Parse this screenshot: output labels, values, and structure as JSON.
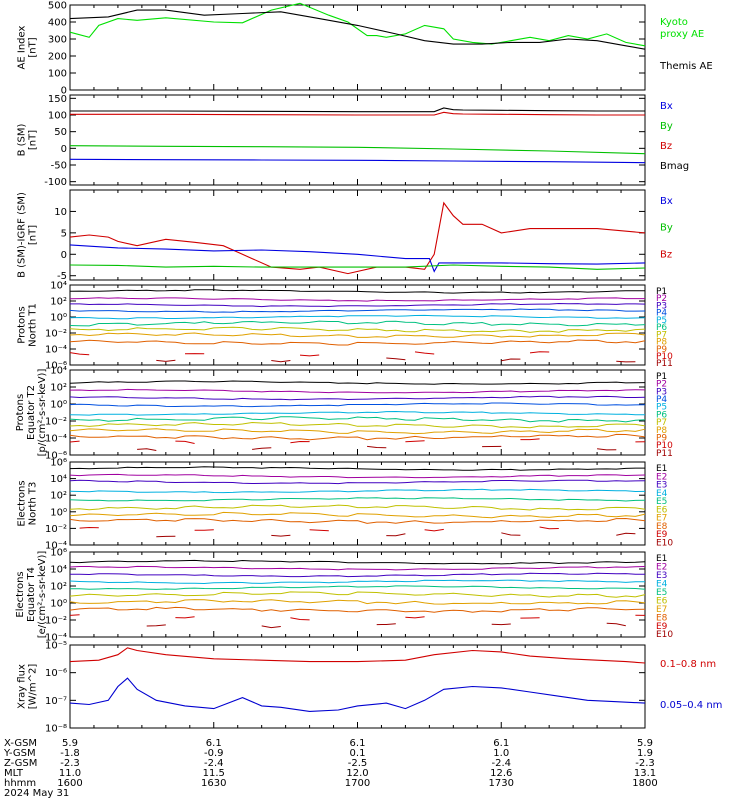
{
  "colors": {
    "black": "#000000",
    "blue": "#0000e0",
    "green": "#00c000",
    "red": "#d00000",
    "kyoto": "#00e000",
    "xray_red": "#d00000",
    "xray_blue": "#0000d0"
  },
  "footer": {
    "labels": [
      "X-GSM",
      "Y-GSM",
      "Z-GSM",
      "MLT",
      "hhmm",
      "2024 May 31"
    ],
    "columns": [
      {
        "x": "5.9",
        "y": "-1.8",
        "z": "-2.3",
        "mlt": "11.0",
        "t": "1600"
      },
      {
        "x": "6.1",
        "y": "-0.9",
        "z": "-2.4",
        "mlt": "11.5",
        "t": "1630"
      },
      {
        "x": "6.1",
        "y": "0.1",
        "z": "-2.5",
        "mlt": "12.0",
        "t": "1700"
      },
      {
        "x": "6.1",
        "y": "1.0",
        "z": "-2.4",
        "mlt": "12.6",
        "t": "1730"
      },
      {
        "x": "5.9",
        "y": "1.9",
        "z": "-2.3",
        "mlt": "13.1",
        "t": "1800"
      }
    ]
  },
  "chart_data": [
    {
      "type": "line",
      "ylabel": [
        "AE Index",
        "[nT]"
      ],
      "ylim": [
        0,
        500
      ],
      "yticks": [
        {
          "v": 0,
          "t": "0"
        },
        {
          "v": 100,
          "t": "100"
        },
        {
          "v": 200,
          "t": "200"
        },
        {
          "v": 300,
          "t": "300"
        },
        {
          "v": 400,
          "t": "400"
        },
        {
          "v": 500,
          "t": "500"
        }
      ],
      "legend": [
        {
          "text": "Kyoto",
          "color": "kyoto"
        },
        {
          "text": "proxy AE",
          "color": "kyoto"
        },
        {
          "text": "Themis AE",
          "color": "black"
        }
      ],
      "series": [
        {
          "name": "Kyoto proxy AE",
          "color": "kyoto",
          "x": [
            0,
            4,
            6,
            10,
            14,
            20,
            30,
            36,
            42,
            48,
            54,
            58,
            62,
            64,
            66,
            70,
            74,
            78,
            80,
            84,
            88,
            92,
            96,
            100,
            104,
            108,
            112,
            116,
            120
          ],
          "y": [
            340,
            310,
            380,
            420,
            410,
            425,
            400,
            395,
            470,
            510,
            440,
            400,
            320,
            320,
            310,
            330,
            380,
            360,
            300,
            280,
            270,
            290,
            310,
            290,
            320,
            300,
            330,
            280,
            260
          ]
        },
        {
          "name": "Themis AE",
          "color": "black",
          "x": [
            0,
            8,
            14,
            20,
            28,
            36,
            44,
            52,
            60,
            68,
            74,
            80,
            86,
            92,
            98,
            104,
            110,
            116,
            120
          ],
          "y": [
            420,
            430,
            470,
            470,
            440,
            450,
            460,
            420,
            380,
            330,
            290,
            270,
            270,
            280,
            280,
            300,
            290,
            260,
            240
          ]
        }
      ]
    },
    {
      "type": "line",
      "ylabel": [
        "B (SM)",
        "[nT]"
      ],
      "ylim": [
        -110,
        160
      ],
      "yticks": [
        {
          "v": -100,
          "t": "-100"
        },
        {
          "v": -50,
          "t": "-50"
        },
        {
          "v": 0,
          "t": "0"
        },
        {
          "v": 50,
          "t": "50"
        },
        {
          "v": 100,
          "t": "100"
        },
        {
          "v": 150,
          "t": "150"
        }
      ],
      "legend": [
        {
          "text": "Bx",
          "color": "blue"
        },
        {
          "text": "By",
          "color": "green"
        },
        {
          "text": "Bz",
          "color": "red"
        },
        {
          "text": "Bmag",
          "color": "black"
        }
      ],
      "series": [
        {
          "name": "Bmag",
          "color": "black",
          "x": [
            0,
            20,
            40,
            60,
            76,
            78,
            80,
            82,
            90,
            100,
            110,
            120
          ],
          "y": [
            112,
            112,
            111,
            110,
            110,
            121,
            116,
            115,
            114,
            113,
            112,
            112
          ]
        },
        {
          "name": "Bz",
          "color": "red",
          "x": [
            0,
            20,
            40,
            60,
            76,
            78,
            80,
            82,
            90,
            100,
            110,
            120
          ],
          "y": [
            102,
            102,
            101,
            100,
            100,
            108,
            104,
            103,
            102,
            101,
            100,
            100
          ]
        },
        {
          "name": "By",
          "color": "green",
          "x": [
            0,
            20,
            40,
            60,
            80,
            100,
            120
          ],
          "y": [
            8,
            6,
            5,
            3,
            -2,
            -8,
            -16
          ]
        },
        {
          "name": "Bx",
          "color": "blue",
          "x": [
            0,
            20,
            40,
            60,
            80,
            100,
            120
          ],
          "y": [
            -33,
            -34,
            -35,
            -36,
            -38,
            -40,
            -43
          ]
        }
      ]
    },
    {
      "type": "line",
      "ylabel": [
        "B (SM)-IGRF (SM)",
        "[nT]"
      ],
      "ylim": [
        -6,
        15
      ],
      "yticks": [
        {
          "v": -5,
          "t": "-5"
        },
        {
          "v": 0,
          "t": "0"
        },
        {
          "v": 5,
          "t": "5"
        },
        {
          "v": 10,
          "t": "10"
        }
      ],
      "legend": [
        {
          "text": "Bx",
          "color": "blue"
        },
        {
          "text": "By",
          "color": "green"
        },
        {
          "text": "Bz",
          "color": "red"
        }
      ],
      "series": [
        {
          "name": "Bz",
          "color": "red",
          "x": [
            0,
            4,
            8,
            10,
            14,
            20,
            26,
            32,
            38,
            42,
            48,
            52,
            58,
            64,
            70,
            74,
            76,
            77,
            78,
            80,
            82,
            86,
            90,
            96,
            104,
            110,
            120
          ],
          "y": [
            4,
            4.5,
            4,
            3,
            2,
            3.5,
            2.8,
            2,
            -1,
            -3,
            -3.5,
            -3,
            -4.5,
            -3,
            -3,
            -3.5,
            0,
            6,
            12,
            9,
            7,
            7,
            5,
            6,
            6,
            6,
            5
          ]
        },
        {
          "name": "Bx",
          "color": "blue",
          "x": [
            0,
            10,
            20,
            30,
            40,
            50,
            60,
            70,
            75,
            76,
            77,
            80,
            90,
            100,
            110,
            120
          ],
          "y": [
            2.2,
            1.5,
            1.2,
            0.8,
            1,
            0.6,
            0,
            -1,
            -1,
            -4,
            -2,
            -2,
            -2,
            -2.2,
            -2.3,
            -2
          ]
        },
        {
          "name": "By",
          "color": "green",
          "x": [
            0,
            10,
            20,
            30,
            40,
            50,
            60,
            70,
            80,
            90,
            100,
            110,
            120
          ],
          "y": [
            -2.5,
            -2.6,
            -3,
            -2.8,
            -3,
            -3,
            -3,
            -3,
            -2.5,
            -2.8,
            -3,
            -3.5,
            -3.2
          ]
        }
      ]
    },
    {
      "type": "line",
      "log": true,
      "ylabel": [
        "Protons",
        "North T1"
      ],
      "ylim": [
        -6,
        4
      ],
      "yticks": [
        {
          "v": -6,
          "t": "10⁻⁶"
        },
        {
          "v": -4,
          "t": "10⁻⁴"
        },
        {
          "v": -2,
          "t": "10⁻²"
        },
        {
          "v": 0,
          "t": "10⁰"
        },
        {
          "v": 2,
          "t": "10²"
        },
        {
          "v": 4,
          "t": "10⁴"
        }
      ],
      "legend": [
        {
          "text": "P1",
          "color": "black"
        },
        {
          "text": "P2",
          "color": "p2"
        },
        {
          "text": "P3",
          "color": "p3"
        },
        {
          "text": "P4",
          "color": "p4"
        },
        {
          "text": "P5",
          "color": "p5"
        },
        {
          "text": "P6",
          "color": "p6"
        },
        {
          "text": "P7",
          "color": "p7"
        },
        {
          "text": "P8",
          "color": "p8"
        },
        {
          "text": "P9",
          "color": "p9"
        },
        {
          "text": "P10",
          "color": "p10"
        },
        {
          "text": "P11",
          "color": "p11"
        }
      ],
      "levels": [
        3.2,
        2.2,
        1.5,
        0.8,
        0,
        -0.8,
        -1.6,
        -2.3,
        -3.2,
        -4.6,
        -5.4
      ],
      "gaps": [
        9,
        10
      ]
    },
    {
      "type": "line",
      "log": true,
      "ylabel": [
        "Protons",
        "Equator T2",
        "[p/(cm²-s-sr-keV)]"
      ],
      "ylim": [
        -6,
        4
      ],
      "yticks": [
        {
          "v": -6,
          "t": "10⁻⁶"
        },
        {
          "v": -4,
          "t": "10⁻⁴"
        },
        {
          "v": -2,
          "t": "10⁻²"
        },
        {
          "v": 0,
          "t": "10⁰"
        },
        {
          "v": 2,
          "t": "10²"
        },
        {
          "v": 4,
          "t": "10⁴"
        }
      ],
      "legend": [
        {
          "text": "P1",
          "color": "black"
        },
        {
          "text": "P2",
          "color": "p2"
        },
        {
          "text": "P3",
          "color": "p3"
        },
        {
          "text": "P4",
          "color": "p4"
        },
        {
          "text": "P5",
          "color": "p5"
        },
        {
          "text": "P6",
          "color": "p6"
        },
        {
          "text": "P7",
          "color": "p7"
        },
        {
          "text": "P8",
          "color": "p8"
        },
        {
          "text": "P9",
          "color": "p9"
        },
        {
          "text": "P10",
          "color": "p10"
        },
        {
          "text": "P11",
          "color": "p11"
        }
      ],
      "levels": [
        2.5,
        1.5,
        0.7,
        -0.1,
        -1.1,
        -1.8,
        -2.5,
        -3.2,
        -3.9,
        -4.4,
        -5.2
      ],
      "gaps": [
        9,
        10
      ]
    },
    {
      "type": "line",
      "log": true,
      "ylabel": [
        "Electrons",
        "North T3"
      ],
      "ylim": [
        -4,
        6
      ],
      "yticks": [
        {
          "v": -4,
          "t": "10⁻⁴"
        },
        {
          "v": -2,
          "t": "10⁻²"
        },
        {
          "v": 0,
          "t": "10⁰"
        },
        {
          "v": 2,
          "t": "10²"
        },
        {
          "v": 4,
          "t": "10⁴"
        },
        {
          "v": 6,
          "t": "10⁶"
        }
      ],
      "legend": [
        {
          "text": "E1",
          "color": "black"
        },
        {
          "text": "E2",
          "color": "p2"
        },
        {
          "text": "E3",
          "color": "p3"
        },
        {
          "text": "E4",
          "color": "p5"
        },
        {
          "text": "E5",
          "color": "p6"
        },
        {
          "text": "E6",
          "color": "p7"
        },
        {
          "text": "E7",
          "color": "p8"
        },
        {
          "text": "E8",
          "color": "p9"
        },
        {
          "text": "E9",
          "color": "p10"
        },
        {
          "text": "E10",
          "color": "p11"
        }
      ],
      "levels": [
        5.2,
        4.3,
        3.6,
        2.5,
        1.5,
        0.5,
        -0.4,
        -1.1,
        -2.1,
        -2.8
      ],
      "gaps": [
        8,
        9
      ]
    },
    {
      "type": "line",
      "log": true,
      "ylabel": [
        "Electrons",
        "Equator T4",
        "[e/(cm²-s-sr-keV)]"
      ],
      "ylim": [
        -4,
        6
      ],
      "yticks": [
        {
          "v": -4,
          "t": "10⁻⁴"
        },
        {
          "v": -2,
          "t": "10⁻²"
        },
        {
          "v": 0,
          "t": "10⁰"
        },
        {
          "v": 2,
          "t": "10²"
        },
        {
          "v": 4,
          "t": "10⁴"
        },
        {
          "v": 6,
          "t": "10⁶"
        }
      ],
      "legend": [
        {
          "text": "E1",
          "color": "black"
        },
        {
          "text": "E2",
          "color": "p2"
        },
        {
          "text": "E3",
          "color": "p3"
        },
        {
          "text": "E4",
          "color": "p5"
        },
        {
          "text": "E5",
          "color": "p6"
        },
        {
          "text": "E6",
          "color": "p7"
        },
        {
          "text": "E7",
          "color": "p8"
        },
        {
          "text": "E8",
          "color": "p9"
        },
        {
          "text": "E9",
          "color": "p10"
        },
        {
          "text": "E10",
          "color": "p11"
        }
      ],
      "levels": [
        4.8,
        4.1,
        3.3,
        2.5,
        1.8,
        1,
        0.1,
        -0.8,
        -1.7,
        -2.6
      ],
      "gaps": [
        8,
        9
      ]
    },
    {
      "type": "line",
      "log": true,
      "ylabel": [
        "Xray flux",
        "[W/m^2]"
      ],
      "ylim": [
        -8,
        -5
      ],
      "yticks": [
        {
          "v": -8,
          "t": "10⁻⁸"
        },
        {
          "v": -7,
          "t": "10⁻⁷"
        },
        {
          "v": -6,
          "t": "10⁻⁶"
        },
        {
          "v": -5,
          "t": "10⁻⁵"
        }
      ],
      "legend": [
        {
          "text": "0.1–0.8 nm",
          "color": "xray_red"
        },
        {
          "text": "0.05–0.4 nm",
          "color": "xray_blue"
        }
      ],
      "series": [
        {
          "name": "0.1–0.8 nm",
          "color": "xray_red",
          "x": [
            0,
            6,
            10,
            12,
            14,
            20,
            30,
            40,
            50,
            60,
            70,
            76,
            84,
            90,
            96,
            104,
            110,
            116,
            120
          ],
          "y": [
            -5.6,
            -5.55,
            -5.35,
            -5.1,
            -5.2,
            -5.35,
            -5.5,
            -5.55,
            -5.6,
            -5.6,
            -5.55,
            -5.35,
            -5.2,
            -5.25,
            -5.4,
            -5.5,
            -5.55,
            -5.6,
            -5.65
          ]
        },
        {
          "name": "0.05–0.4 nm",
          "color": "xray_blue",
          "x": [
            0,
            4,
            8,
            10,
            12,
            14,
            18,
            24,
            30,
            36,
            40,
            44,
            50,
            56,
            60,
            66,
            70,
            74,
            78,
            84,
            90,
            96,
            102,
            108,
            114,
            120
          ],
          "y": [
            -7.1,
            -7.15,
            -7,
            -6.5,
            -6.2,
            -6.6,
            -7,
            -7.2,
            -7.3,
            -6.9,
            -7.2,
            -7.25,
            -7.4,
            -7.35,
            -7.2,
            -7.1,
            -7.3,
            -7.0,
            -6.6,
            -6.5,
            -6.55,
            -6.7,
            -6.85,
            -7.0,
            -7.05,
            -7.1
          ]
        }
      ]
    }
  ]
}
